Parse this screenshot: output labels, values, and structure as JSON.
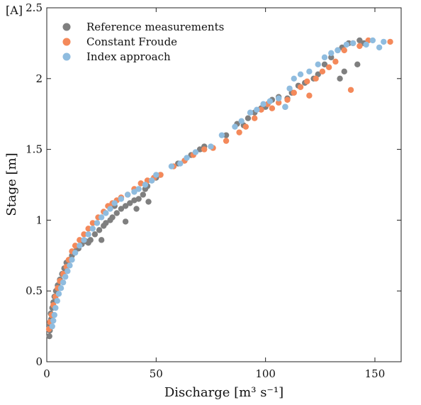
{
  "panel_label": "[A]",
  "chart_data": {
    "type": "scatter",
    "title": "",
    "xlabel": "Discharge [m³ s⁻¹]",
    "ylabel": "Stage [m]",
    "xlim": [
      0,
      162
    ],
    "ylim": [
      0,
      2.5
    ],
    "xticks": [
      0,
      50,
      100,
      150
    ],
    "yticks": [
      0,
      0.5,
      1,
      1.5,
      2,
      2.5
    ],
    "xtick_labels": [
      "0",
      "50",
      "100",
      "150"
    ],
    "ytick_labels": [
      "0",
      "0.5",
      "1",
      "1.5",
      "2",
      "2.5"
    ],
    "grid": false,
    "legend_position": "top-left",
    "series": [
      {
        "name": "Reference measurements",
        "color": "#7f7f7f",
        "points": [
          [
            1.2,
            0.18
          ],
          [
            1.4,
            0.22
          ],
          [
            1.6,
            0.26
          ],
          [
            2.0,
            0.3
          ],
          [
            1.8,
            0.34
          ],
          [
            2.5,
            0.38
          ],
          [
            3.0,
            0.42
          ],
          [
            3.5,
            0.46
          ],
          [
            4.2,
            0.5
          ],
          [
            5.0,
            0.54
          ],
          [
            6.0,
            0.58
          ],
          [
            7.0,
            0.62
          ],
          [
            8.0,
            0.66
          ],
          [
            9.0,
            0.7
          ],
          [
            10.5,
            0.72
          ],
          [
            11.5,
            0.75
          ],
          [
            13.0,
            0.78
          ],
          [
            14.5,
            0.8
          ],
          [
            16.0,
            0.83
          ],
          [
            18.0,
            0.85
          ],
          [
            20.0,
            0.86
          ],
          [
            22.0,
            0.9
          ],
          [
            24.0,
            0.93
          ],
          [
            26.0,
            0.96
          ],
          [
            27.0,
            0.98
          ],
          [
            29.0,
            1.0
          ],
          [
            30.0,
            1.02
          ],
          [
            32.0,
            1.05
          ],
          [
            34.0,
            1.08
          ],
          [
            36.0,
            1.1
          ],
          [
            38.0,
            1.12
          ],
          [
            40.0,
            1.14
          ],
          [
            42.0,
            1.15
          ],
          [
            44.0,
            1.18
          ],
          [
            45.0,
            1.22
          ],
          [
            46.0,
            1.24
          ],
          [
            48.0,
            1.28
          ],
          [
            50.0,
            1.3
          ],
          [
            52.0,
            1.32
          ],
          [
            19.0,
            0.84
          ],
          [
            25.0,
            0.86
          ],
          [
            36.0,
            0.99
          ],
          [
            31.0,
            1.1
          ],
          [
            41.0,
            1.08
          ],
          [
            46.5,
            1.13
          ],
          [
            60.0,
            1.4
          ],
          [
            63.0,
            1.42
          ],
          [
            66.0,
            1.46
          ],
          [
            70.0,
            1.5
          ],
          [
            72.0,
            1.52
          ],
          [
            82.0,
            1.6
          ],
          [
            87.0,
            1.68
          ],
          [
            90.0,
            1.67
          ],
          [
            92.0,
            1.72
          ],
          [
            95.0,
            1.76
          ],
          [
            98.0,
            1.79
          ],
          [
            100.0,
            1.8
          ],
          [
            103.0,
            1.85
          ],
          [
            106.0,
            1.87
          ],
          [
            109.0,
            1.8
          ],
          [
            110.0,
            1.86
          ],
          [
            112.0,
            1.9
          ],
          [
            115.0,
            1.95
          ],
          [
            118.0,
            1.97
          ],
          [
            122.0,
            2.0
          ],
          [
            124.0,
            2.03
          ],
          [
            127.0,
            2.1
          ],
          [
            130.0,
            2.15
          ],
          [
            133.0,
            2.2
          ],
          [
            135.0,
            2.22
          ],
          [
            138.0,
            2.25
          ],
          [
            142.0,
            2.1
          ],
          [
            143.0,
            2.27
          ],
          [
            145.0,
            2.25
          ],
          [
            134.0,
            2.0
          ],
          [
            136.0,
            2.05
          ]
        ]
      },
      {
        "name": "Constant Froude",
        "color": "#f4895a",
        "points": [
          [
            1.0,
            0.23
          ],
          [
            1.5,
            0.28
          ],
          [
            2.2,
            0.33
          ],
          [
            3.0,
            0.4
          ],
          [
            4.0,
            0.46
          ],
          [
            5.0,
            0.52
          ],
          [
            6.0,
            0.57
          ],
          [
            7.5,
            0.62
          ],
          [
            9.0,
            0.67
          ],
          [
            10.0,
            0.72
          ],
          [
            11.5,
            0.78
          ],
          [
            13.0,
            0.82
          ],
          [
            15.0,
            0.86
          ],
          [
            17.0,
            0.9
          ],
          [
            19.0,
            0.94
          ],
          [
            21.0,
            0.98
          ],
          [
            23.5,
            1.02
          ],
          [
            26.0,
            1.06
          ],
          [
            28.0,
            1.1
          ],
          [
            30.0,
            1.12
          ],
          [
            32.0,
            1.14
          ],
          [
            34.0,
            1.16
          ],
          [
            37.0,
            1.18
          ],
          [
            40.0,
            1.22
          ],
          [
            43.0,
            1.26
          ],
          [
            46.0,
            1.28
          ],
          [
            49.0,
            1.3
          ],
          [
            52.0,
            1.32
          ],
          [
            58.0,
            1.38
          ],
          [
            63.0,
            1.42
          ],
          [
            67.0,
            1.46
          ],
          [
            72.0,
            1.5
          ],
          [
            76.0,
            1.51
          ],
          [
            82.0,
            1.56
          ],
          [
            88.0,
            1.62
          ],
          [
            91.0,
            1.66
          ],
          [
            95.0,
            1.72
          ],
          [
            98.0,
            1.78
          ],
          [
            101.0,
            1.82
          ],
          [
            103.0,
            1.79
          ],
          [
            106.0,
            1.83
          ],
          [
            110.0,
            1.85
          ],
          [
            113.0,
            1.9
          ],
          [
            116.0,
            1.94
          ],
          [
            119.0,
            1.98
          ],
          [
            120.0,
            1.88
          ],
          [
            123.0,
            2.0
          ],
          [
            126.0,
            2.05
          ],
          [
            129.0,
            2.08
          ],
          [
            132.0,
            2.12
          ],
          [
            136.0,
            2.2
          ],
          [
            139.0,
            1.92
          ],
          [
            140.0,
            2.25
          ],
          [
            143.0,
            2.23
          ],
          [
            147.0,
            2.27
          ],
          [
            157.0,
            2.26
          ]
        ]
      },
      {
        "name": "Index approach",
        "color": "#8fbcdf",
        "points": [
          [
            2.5,
            0.25
          ],
          [
            3.0,
            0.29
          ],
          [
            3.5,
            0.33
          ],
          [
            4.0,
            0.38
          ],
          [
            4.8,
            0.43
          ],
          [
            5.5,
            0.48
          ],
          [
            6.5,
            0.52
          ],
          [
            7.5,
            0.56
          ],
          [
            8.5,
            0.6
          ],
          [
            9.5,
            0.64
          ],
          [
            10.5,
            0.68
          ],
          [
            11.5,
            0.72
          ],
          [
            13.0,
            0.77
          ],
          [
            15.0,
            0.82
          ],
          [
            17.0,
            0.86
          ],
          [
            19.0,
            0.9
          ],
          [
            21.0,
            0.94
          ],
          [
            23.0,
            0.98
          ],
          [
            25.0,
            1.02
          ],
          [
            27.0,
            1.05
          ],
          [
            29.0,
            1.08
          ],
          [
            31.0,
            1.12
          ],
          [
            34.0,
            1.15
          ],
          [
            37.0,
            1.18
          ],
          [
            40.0,
            1.2
          ],
          [
            42.0,
            1.22
          ],
          [
            45.0,
            1.25
          ],
          [
            48.0,
            1.28
          ],
          [
            50.0,
            1.32
          ],
          [
            57.0,
            1.38
          ],
          [
            61.0,
            1.4
          ],
          [
            64.0,
            1.44
          ],
          [
            68.0,
            1.48
          ],
          [
            75.0,
            1.52
          ],
          [
            80.0,
            1.6
          ],
          [
            86.0,
            1.66
          ],
          [
            89.0,
            1.7
          ],
          [
            93.0,
            1.76
          ],
          [
            96.0,
            1.78
          ],
          [
            99.0,
            1.82
          ],
          [
            102.0,
            1.84
          ],
          [
            106.0,
            1.86
          ],
          [
            109.0,
            1.8
          ],
          [
            111.0,
            1.93
          ],
          [
            113.0,
            2.0
          ],
          [
            116.0,
            2.03
          ],
          [
            120.0,
            2.05
          ],
          [
            124.0,
            2.1
          ],
          [
            127.0,
            2.15
          ],
          [
            130.0,
            2.18
          ],
          [
            133.0,
            2.2
          ],
          [
            137.0,
            2.24
          ],
          [
            140.0,
            2.25
          ],
          [
            146.0,
            2.24
          ],
          [
            149.0,
            2.27
          ],
          [
            152.0,
            2.22
          ],
          [
            154.0,
            2.26
          ]
        ]
      }
    ]
  }
}
